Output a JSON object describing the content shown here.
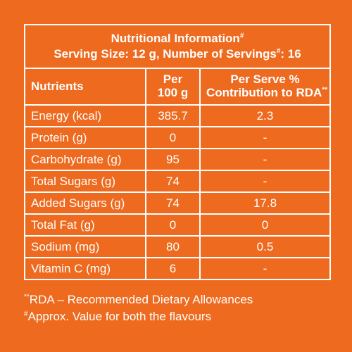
{
  "table": {
    "title_line1": "Nutritional Information",
    "title_line1_mark": "#",
    "title_line2_pre": "Serving Size: 12 g, Number of Servings",
    "title_line2_mark": "#",
    "title_line2_post": ": 16",
    "headers": {
      "nutrients": "Nutrients",
      "per_line1": "Per",
      "per_line2": "100 g",
      "rda_line1": "Per Serve %",
      "rda_line2": "Contribution to RDA",
      "rda_mark": "**"
    },
    "rows": [
      {
        "nutrient": "Energy (kcal)",
        "per100": "385.7",
        "rda": "2.3"
      },
      {
        "nutrient": "Protein (g)",
        "per100": "0",
        "rda": "-"
      },
      {
        "nutrient": "Carbohydrate (g)",
        "per100": "95",
        "rda": "-"
      },
      {
        "nutrient": "Total Sugars (g)",
        "per100": "74",
        "rda": "-"
      },
      {
        "nutrient": "Added Sugars (g)",
        "per100": "74",
        "rda": "17.8"
      },
      {
        "nutrient": "Total Fat (g)",
        "per100": "0",
        "rda": "0"
      },
      {
        "nutrient": "Sodium (mg)",
        "per100": "80",
        "rda": "0.5"
      },
      {
        "nutrient": "Vitamin C (mg)",
        "per100": "6",
        "rda": "-"
      }
    ]
  },
  "footnotes": {
    "note1_mark": "**",
    "note1_text": "RDA – Recommended Dietary Allowances",
    "note2_mark": "#",
    "note2_text": "Approx. Value for both the flavours"
  },
  "colors": {
    "background": "#ee6a1f",
    "text": "#ffffff"
  }
}
